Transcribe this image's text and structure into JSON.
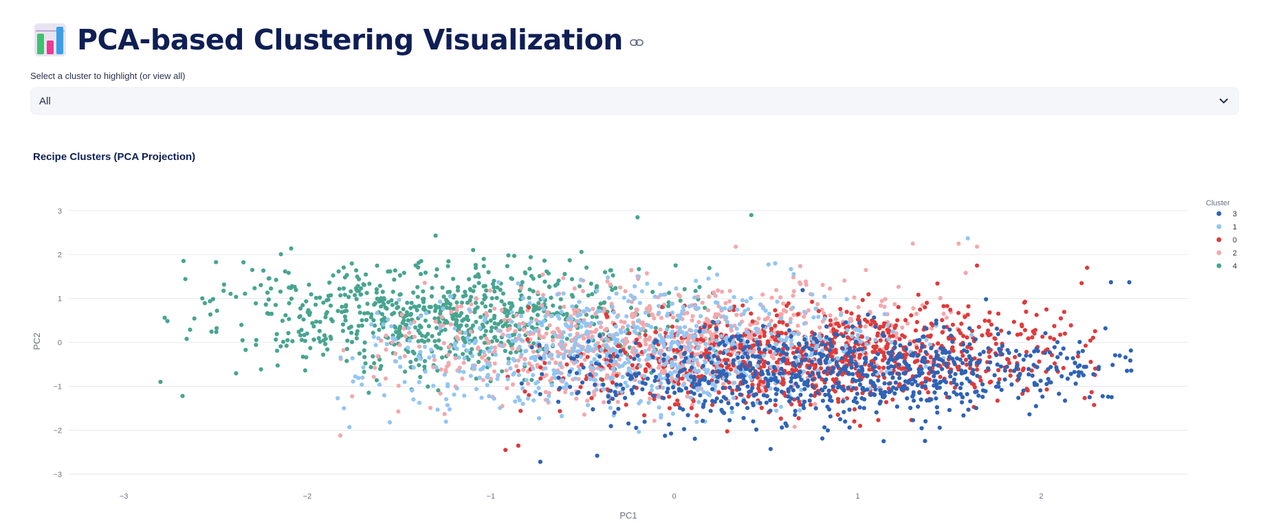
{
  "header": {
    "title": "PCA-based Clustering Visualization",
    "app_icon": "bar-chart-icon",
    "anchor_icon": "link-icon"
  },
  "filter": {
    "label": "Select a cluster to highlight (or view all)",
    "selected": "All",
    "chevron_icon": "chevron-down-icon"
  },
  "chart_title": "Recipe Clusters (PCA Projection)",
  "chart_data": {
    "type": "scatter",
    "title": "Recipe Clusters (PCA Projection)",
    "xlabel": "PC1",
    "ylabel": "PC2",
    "xlim": [
      -3.3,
      2.8
    ],
    "ylim": [
      -3.15,
      3.2
    ],
    "xticks": [
      -3,
      -2,
      -1,
      0,
      1,
      2
    ],
    "yticks": [
      -3,
      -2,
      -1,
      0,
      1,
      2,
      3
    ],
    "xtick_labels": [
      "−3",
      "−2",
      "−1",
      "0",
      "1",
      "2"
    ],
    "ytick_labels": [
      "−3",
      "−2",
      "−1",
      "0",
      "1",
      "2",
      "3"
    ],
    "grid": "horizontal",
    "legend_title": "Cluster",
    "legend_position": "right",
    "series": [
      {
        "name": "3",
        "color": "#2f63b6",
        "center": [
          0.9,
          -0.7
        ],
        "spread": [
          0.75,
          0.7
        ],
        "rotation": 0.25,
        "count": 850,
        "xrange": [
          -0.85,
          2.5
        ],
        "yrange": [
          -2.7,
          1.6
        ],
        "points": [
          [
            2.48,
            1.37
          ],
          [
            2.38,
            1.37
          ],
          [
            2.35,
            0.32
          ],
          [
            2.2,
            -0.55
          ],
          [
            -0.73,
            -2.72
          ],
          [
            -0.42,
            -2.58
          ]
        ]
      },
      {
        "name": "1",
        "color": "#92c6f4",
        "center": [
          -0.2,
          -0.2
        ],
        "spread": [
          0.7,
          0.9
        ],
        "rotation": 0.35,
        "count": 750,
        "xrange": [
          -1.85,
          1.7
        ],
        "yrange": [
          -2.1,
          2.4
        ],
        "points": [
          [
            -1.77,
            -1.93
          ],
          [
            -1.8,
            -1.5
          ],
          [
            1.6,
            2.37
          ],
          [
            0.55,
            1.8
          ],
          [
            -1.55,
            -1.82
          ]
        ]
      },
      {
        "name": "0",
        "color": "#e03a3a",
        "center": [
          0.8,
          -0.35
        ],
        "spread": [
          0.75,
          0.7
        ],
        "rotation": 0.3,
        "count": 950,
        "xrange": [
          -0.95,
          2.3
        ],
        "yrange": [
          -2.55,
          1.75
        ],
        "points": [
          [
            2.25,
            1.7
          ],
          [
            2.22,
            1.35
          ],
          [
            -0.92,
            -2.45
          ],
          [
            -0.85,
            -2.35
          ],
          [
            1.65,
            1.75
          ]
        ]
      },
      {
        "name": "2",
        "color": "#f3a8ac",
        "center": [
          0.0,
          0.0
        ],
        "spread": [
          0.8,
          0.8
        ],
        "rotation": 0.3,
        "count": 850,
        "xrange": [
          -1.82,
          1.65
        ],
        "yrange": [
          -2.15,
          2.3
        ],
        "points": [
          [
            -1.82,
            -2.12
          ],
          [
            1.65,
            2.18
          ],
          [
            1.55,
            2.25
          ],
          [
            1.3,
            2.25
          ]
        ]
      },
      {
        "name": "4",
        "color": "#47a58f",
        "center": [
          -1.25,
          0.55
        ],
        "spread": [
          0.6,
          0.8
        ],
        "rotation": 0.35,
        "count": 800,
        "xrange": [
          -2.8,
          0.5
        ],
        "yrange": [
          -1.3,
          2.9
        ],
        "points": [
          [
            -2.8,
            -0.9
          ],
          [
            -2.68,
            -1.22
          ],
          [
            0.42,
            2.9
          ],
          [
            -0.2,
            2.85
          ],
          [
            -2.3,
            1.65
          ]
        ]
      }
    ]
  }
}
